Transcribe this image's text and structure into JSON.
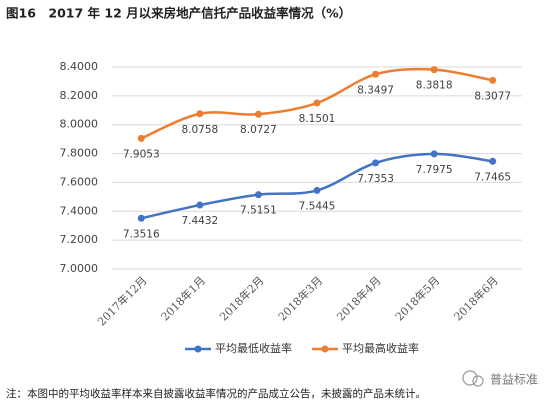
{
  "chart_data": {
    "type": "line",
    "title": "图16　2017 年 12 月以来房地产信托产品收益率情况（%）",
    "categories": [
      "2017年12月",
      "2018年1月",
      "2018年2月",
      "2018年3月",
      "2018年4月",
      "2018年5月",
      "2018年6月"
    ],
    "series": [
      {
        "name": "平均最低收益率",
        "color": "#4472c4",
        "values": [
          7.3516,
          7.4432,
          7.5151,
          7.5445,
          7.7353,
          7.7975,
          7.7465
        ]
      },
      {
        "name": "平均最高收益率",
        "color": "#ed7d31",
        "values": [
          7.9053,
          8.0758,
          8.0727,
          8.1501,
          8.3497,
          8.3818,
          8.3077
        ]
      }
    ],
    "ylim": [
      7,
      8.4
    ],
    "yticks": [
      {
        "value": 7,
        "label": "7.0000"
      },
      {
        "value": 7.2,
        "label": "7.2000"
      },
      {
        "value": 7.4,
        "label": "7.4000"
      },
      {
        "value": 7.6,
        "label": "7.6000"
      },
      {
        "value": 7.8,
        "label": "7.8000"
      },
      {
        "value": 8,
        "label": "8.0000"
      },
      {
        "value": 8.2,
        "label": "8.2000"
      },
      {
        "value": 8.4,
        "label": "8.4000"
      }
    ],
    "grid": true,
    "legend": "bottom",
    "note": "注：本图中的平均收益率样本来自披露收益率情况的产品成立公告，未披露的产品未统计。",
    "watermark": "普益标准"
  }
}
